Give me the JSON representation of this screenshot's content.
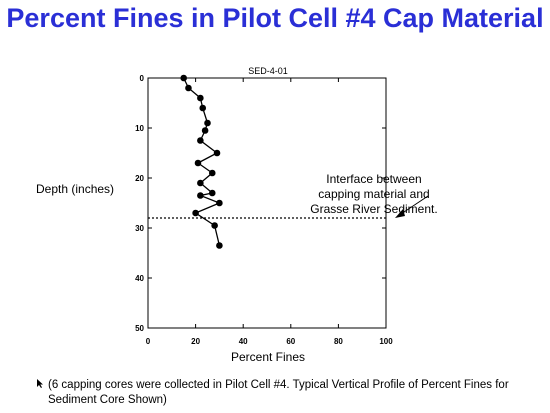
{
  "title": "Percent Fines in Pilot Cell #4 Cap Material",
  "annotation": "Interface between capping material and Grasse River Sediment.",
  "footnote": "(6 capping cores were collected in Pilot Cell #4. Typical Vertical Profile of Percent Fines for Sediment Core Shown)",
  "chart_data": {
    "type": "line",
    "title": "SED-4-01",
    "xlabel": "Percent Fines",
    "ylabel": "Depth (inches)",
    "xlim": [
      0,
      100
    ],
    "ylim": [
      0,
      50
    ],
    "y_inverted": true,
    "xticks": [
      0,
      20,
      40,
      60,
      80,
      100
    ],
    "yticks": [
      0,
      10,
      20,
      30,
      40,
      50
    ],
    "x": [
      15,
      17,
      22,
      23,
      25,
      24,
      22,
      29,
      21,
      27,
      22,
      27,
      22,
      30,
      20,
      28,
      30
    ],
    "y": [
      0,
      2,
      4,
      6,
      9,
      10.5,
      12.5,
      15,
      17,
      19,
      21,
      23,
      23.5,
      25,
      27,
      29.5,
      33.5
    ],
    "interface_depth": 28,
    "grid": false
  }
}
